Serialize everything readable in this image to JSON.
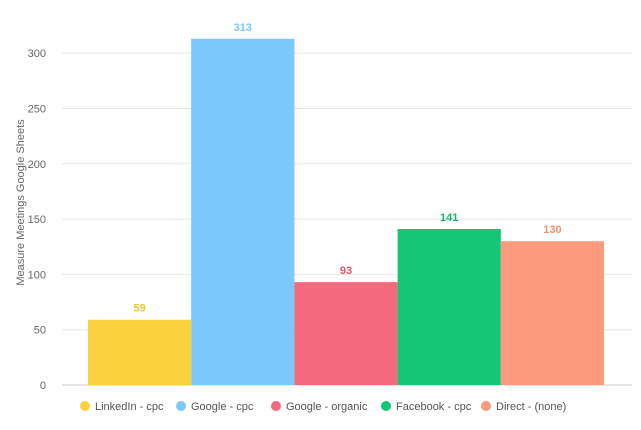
{
  "chart_data": {
    "type": "bar",
    "title": "",
    "xlabel": "",
    "ylabel": "Measure Meetings Google Sheets",
    "ylim": [
      0,
      330
    ],
    "yticks": [
      0,
      50,
      100,
      150,
      200,
      250,
      300
    ],
    "grid": true,
    "legend_position": "bottom",
    "categories": [
      "LinkedIn - cpc",
      "Google - cpc",
      "Google - organic",
      "Facebook - cpc",
      "Direct - (none)"
    ],
    "values": [
      59,
      313,
      93,
      141,
      130
    ],
    "value_labels": [
      "59",
      "313",
      "93",
      "141",
      "130"
    ],
    "colors": [
      "#fcd13e",
      "#7cc8fb",
      "#f46a7c",
      "#14c774",
      "#fb9a7c"
    ],
    "label_colors": [
      "#f4c430",
      "#7cc8fb",
      "#e0566a",
      "#12b86a",
      "#f49070"
    ]
  }
}
